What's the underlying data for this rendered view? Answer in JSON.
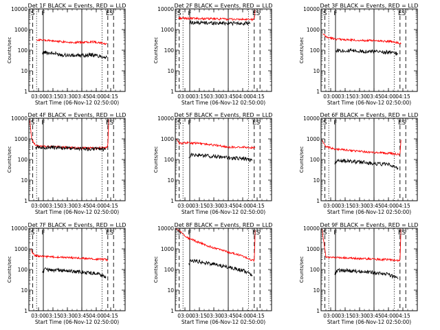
{
  "chart_data": [
    {
      "type": "line",
      "title": "Det 1F BLACK = Events, RED = LLD",
      "xlabel": "Start Time (06-Nov-12 02:50:00)",
      "ylabel": "Counts/sec",
      "yscale": "log",
      "ylim": [
        1,
        10000
      ],
      "x_ticks": [
        "03:00",
        "03:15",
        "03:30",
        "03:45",
        "04:00",
        "04:15"
      ],
      "y_ticks": [
        "1",
        "10",
        "100",
        "1000",
        "10000"
      ],
      "markers": [
        "S",
        "F",
        "E",
        "S"
      ],
      "series": [
        {
          "color": "#ff0000",
          "x": [
            "02:58",
            "03:05",
            "03:15",
            "03:25",
            "03:35",
            "03:45",
            "03:55",
            "04:05",
            "04:11"
          ],
          "y": [
            330,
            300,
            280,
            260,
            240,
            240,
            260,
            230,
            200
          ]
        },
        {
          "color": "#000000",
          "x": [
            "03:04",
            "03:06",
            "03:15",
            "03:25",
            "03:35",
            "03:45",
            "03:55",
            "04:05",
            "04:11"
          ],
          "y": [
            65,
            80,
            70,
            60,
            55,
            55,
            60,
            50,
            45
          ]
        }
      ]
    },
    {
      "type": "line",
      "title": "Det 2F BLACK = Events, RED = LLD",
      "xlabel": "Start Time (06-Nov-12 02:50:00)",
      "ylabel": "Counts/sec",
      "yscale": "log",
      "ylim": [
        1,
        10000
      ],
      "x_ticks": [
        "03:00",
        "03:15",
        "03:30",
        "03:45",
        "04:00",
        "04:15"
      ],
      "y_ticks": [
        "1",
        "10",
        "100",
        "1000",
        "10000"
      ],
      "markers": [
        "S",
        "F",
        "E",
        "S"
      ],
      "series": [
        {
          "color": "#ff0000",
          "x": [
            "02:53",
            "03:00",
            "03:15",
            "03:30",
            "03:45",
            "04:00",
            "04:08",
            "04:12",
            "04:13"
          ],
          "y": [
            3600,
            3500,
            3400,
            3300,
            3200,
            3100,
            3000,
            3200,
            9000
          ]
        },
        {
          "color": "#000000",
          "x": [
            "03:05",
            "03:15",
            "03:30",
            "03:45",
            "04:00",
            "04:08"
          ],
          "y": [
            2200,
            2150,
            2100,
            2050,
            2000,
            1950
          ]
        }
      ]
    },
    {
      "type": "line",
      "title": "Det 3F BLACK = Events, RED = LLD",
      "xlabel": "Start Time (06-Nov-12 02:50:00)",
      "ylabel": "Counts/sec",
      "yscale": "log",
      "ylim": [
        1,
        10000
      ],
      "x_ticks": [
        "03:00",
        "03:15",
        "03:30",
        "03:45",
        "04:00",
        "04:15"
      ],
      "y_ticks": [
        "1",
        "10",
        "100",
        "1000",
        "10000"
      ],
      "markers": [
        "S",
        "F",
        "E",
        "S"
      ],
      "series": [
        {
          "color": "#ff0000",
          "x": [
            "02:52",
            "02:56",
            "03:05",
            "03:15",
            "03:30",
            "03:45",
            "04:00",
            "04:10",
            "04:13"
          ],
          "y": [
            600,
            420,
            350,
            320,
            300,
            290,
            270,
            230,
            200
          ]
        },
        {
          "color": "#000000",
          "x": [
            "03:05",
            "03:07",
            "03:15",
            "03:30",
            "03:45",
            "04:00",
            "04:10"
          ],
          "y": [
            85,
            100,
            95,
            90,
            85,
            80,
            65
          ]
        }
      ]
    },
    {
      "type": "line",
      "title": "Det 4F BLACK = Events, RED = LLD",
      "xlabel": "Start Time (06-Nov-12 02:50:00)",
      "ylabel": "Counts/sec",
      "yscale": "log",
      "ylim": [
        1,
        10000
      ],
      "x_ticks": [
        "03:00",
        "03:15",
        "03:30",
        "03:45",
        "04:00",
        "04:15"
      ],
      "y_ticks": [
        "1",
        "10",
        "100",
        "1000",
        "10000"
      ],
      "markers": [
        "S",
        "F",
        "E",
        "S"
      ],
      "series": [
        {
          "color": "#ff0000",
          "x": [
            "02:51",
            "02:53",
            "02:58",
            "03:15",
            "03:30",
            "03:45",
            "04:00",
            "04:10",
            "04:12",
            "04:13"
          ],
          "y": [
            8000,
            900,
            450,
            420,
            380,
            360,
            360,
            380,
            450,
            9000
          ]
        },
        {
          "color": "#000000",
          "x": [
            "02:57",
            "03:15",
            "03:30",
            "03:45",
            "04:00",
            "04:10"
          ],
          "y": [
            400,
            380,
            350,
            330,
            320,
            320
          ]
        }
      ]
    },
    {
      "type": "line",
      "title": "Det 5F BLACK = Events, RED = LLD",
      "xlabel": "Start Time (06-Nov-12 02:50:00)",
      "ylabel": "Counts/sec",
      "yscale": "log",
      "ylim": [
        1,
        10000
      ],
      "x_ticks": [
        "03:00",
        "03:15",
        "03:30",
        "03:45",
        "04:00",
        "04:15"
      ],
      "y_ticks": [
        "1",
        "10",
        "100",
        "1000",
        "10000"
      ],
      "markers": [
        "S",
        "F",
        "E",
        "S"
      ],
      "series": [
        {
          "color": "#ff0000",
          "x": [
            "02:51",
            "02:54",
            "03:00",
            "03:15",
            "03:30",
            "03:45",
            "04:00",
            "04:10",
            "04:13"
          ],
          "y": [
            1000,
            600,
            650,
            600,
            500,
            400,
            400,
            380,
            400
          ]
        },
        {
          "color": "#000000",
          "x": [
            "03:04",
            "03:06",
            "03:15",
            "03:30",
            "03:45",
            "04:00",
            "04:10"
          ],
          "y": [
            120,
            170,
            160,
            140,
            120,
            110,
            90
          ]
        }
      ]
    },
    {
      "type": "line",
      "title": "Det 6F BLACK = Events, RED = LLD",
      "xlabel": "Start Time (06-Nov-12 02:50:00)",
      "ylabel": "Counts/sec",
      "yscale": "log",
      "ylim": [
        1,
        10000
      ],
      "x_ticks": [
        "03:00",
        "03:15",
        "03:30",
        "03:45",
        "04:00",
        "04:15"
      ],
      "y_ticks": [
        "1",
        "10",
        "100",
        "1000",
        "10000"
      ],
      "markers": [
        "S",
        "F",
        "E",
        "S"
      ],
      "series": [
        {
          "color": "#ff0000",
          "x": [
            "02:51",
            "02:55",
            "03:05",
            "03:15",
            "03:30",
            "03:45",
            "04:00",
            "04:10",
            "04:12",
            "04:13"
          ],
          "y": [
            900,
            400,
            320,
            290,
            250,
            220,
            200,
            180,
            170,
            900
          ]
        },
        {
          "color": "#000000",
          "x": [
            "03:04",
            "03:07",
            "03:15",
            "03:30",
            "03:45",
            "04:00",
            "04:10"
          ],
          "y": [
            60,
            90,
            85,
            75,
            65,
            55,
            40
          ]
        }
      ]
    },
    {
      "type": "line",
      "title": "Det 7F BLACK = Events, RED = LLD",
      "xlabel": "Start Time (06-Nov-12 02:50:00)",
      "ylabel": "Counts/sec",
      "yscale": "log",
      "ylim": [
        1,
        10000
      ],
      "x_ticks": [
        "03:00",
        "03:15",
        "03:30",
        "03:45",
        "04:00",
        "04:15"
      ],
      "y_ticks": [
        "1",
        "10",
        "100",
        "1000",
        "10000"
      ],
      "markers": [
        "S",
        "F",
        "E",
        "S"
      ],
      "series": [
        {
          "color": "#ff0000",
          "x": [
            "02:52",
            "02:56",
            "03:05",
            "03:15",
            "03:30",
            "03:45",
            "04:00",
            "04:10",
            "04:12"
          ],
          "y": [
            900,
            480,
            420,
            400,
            380,
            350,
            320,
            300,
            280
          ]
        },
        {
          "color": "#000000",
          "x": [
            "03:04",
            "03:07",
            "03:15",
            "03:30",
            "03:45",
            "04:00",
            "04:10"
          ],
          "y": [
            70,
            100,
            95,
            85,
            75,
            65,
            45
          ]
        }
      ]
    },
    {
      "type": "line",
      "title": "Det 8F BLACK = Events, RED = LLD",
      "xlabel": "Start Time (06-Nov-12 02:50:00)",
      "ylabel": "Counts/sec",
      "yscale": "log",
      "ylim": [
        1,
        10000
      ],
      "x_ticks": [
        "03:00",
        "03:15",
        "03:30",
        "03:45",
        "04:00",
        "04:15"
      ],
      "y_ticks": [
        "1",
        "10",
        "100",
        "1000",
        "10000"
      ],
      "markers": [
        "S",
        "F",
        "E",
        "S"
      ],
      "series": [
        {
          "color": "#ff0000",
          "x": [
            "02:51",
            "02:55",
            "03:00",
            "03:15",
            "03:30",
            "03:45",
            "04:00",
            "04:10",
            "04:12",
            "04:13"
          ],
          "y": [
            9000,
            7000,
            4000,
            2000,
            1100,
            700,
            450,
            280,
            260,
            8000
          ]
        },
        {
          "color": "#000000",
          "x": [
            "03:04",
            "03:07",
            "03:15",
            "03:30",
            "03:45",
            "04:00",
            "04:10"
          ],
          "y": [
            200,
            280,
            240,
            180,
            130,
            90,
            55
          ]
        }
      ]
    },
    {
      "type": "line",
      "title": "Det 9F BLACK = Events, RED = LLD",
      "xlabel": "Start Time (06-Nov-12 02:50:00)",
      "ylabel": "Counts/sec",
      "yscale": "log",
      "ylim": [
        1,
        10000
      ],
      "x_ticks": [
        "03:00",
        "03:15",
        "03:30",
        "03:45",
        "04:00",
        "04:15"
      ],
      "y_ticks": [
        "1",
        "10",
        "100",
        "1000",
        "10000"
      ],
      "markers": [
        "S",
        "F",
        "E",
        "S"
      ],
      "series": [
        {
          "color": "#ff0000",
          "x": [
            "02:51",
            "02:55",
            "03:05",
            "03:15",
            "03:30",
            "03:45",
            "04:00",
            "04:10",
            "04:12",
            "04:13"
          ],
          "y": [
            9000,
            400,
            380,
            370,
            340,
            320,
            300,
            270,
            250,
            9000
          ]
        },
        {
          "color": "#000000",
          "x": [
            "03:04",
            "03:07",
            "03:15",
            "03:30",
            "03:45",
            "04:00",
            "04:10"
          ],
          "y": [
            60,
            90,
            90,
            80,
            70,
            60,
            35
          ]
        }
      ]
    }
  ]
}
